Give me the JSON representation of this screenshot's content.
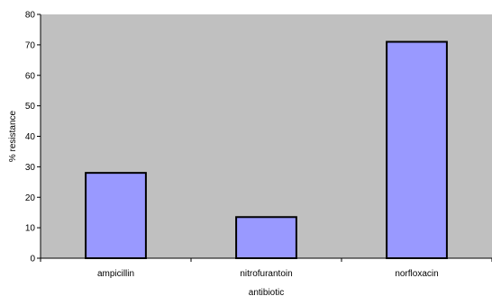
{
  "chart_data": {
    "type": "bar",
    "categories": [
      "ampicillin",
      "nitrofurantoin",
      "norfloxacin"
    ],
    "values": [
      28,
      13.5,
      71
    ],
    "xlabel": "antibiotic",
    "ylabel": "% resistance",
    "ylim": [
      0,
      80
    ],
    "yticks": [
      0,
      10,
      20,
      30,
      40,
      50,
      60,
      70,
      80
    ],
    "grid": false,
    "legend": "none",
    "colors": {
      "plot_background": "#c0c0c0",
      "bar_fill": "#9999ff",
      "bar_stroke": "#000000"
    }
  }
}
